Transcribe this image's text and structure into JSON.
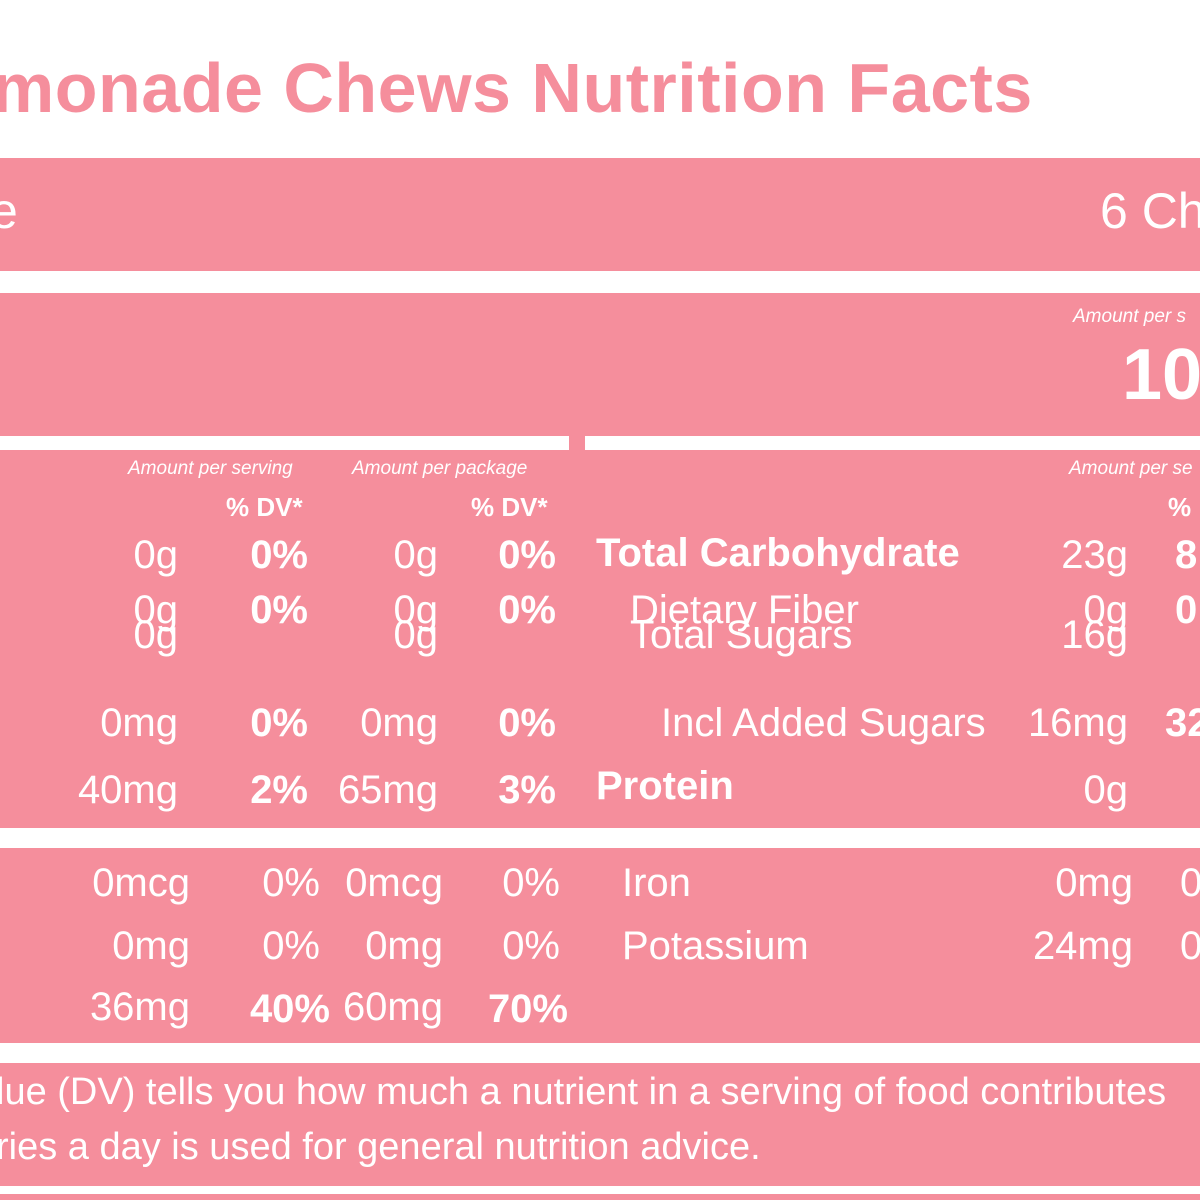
{
  "title": "monade Chews Nutrition Facts",
  "serving": {
    "label": "e",
    "value": "6 Ch"
  },
  "calories": {
    "amount_label": "Amount per s",
    "value": "10"
  },
  "macros": {
    "left": {
      "per_serving_label": "Amount per serving",
      "per_package_label": "Amount per package",
      "dv_label": "% DV*",
      "rows": [
        {
          "serv_amt": "0g",
          "serv_dv": "0%",
          "pkg_amt": "0g",
          "pkg_dv": "0%"
        },
        {
          "serv_amt": "0g",
          "serv_dv": "0%",
          "pkg_amt": "0g",
          "pkg_dv": "0%"
        },
        {
          "serv_amt": "0g",
          "serv_dv": "",
          "pkg_amt": "0g",
          "pkg_dv": ""
        },
        {
          "serv_amt": "0mg",
          "serv_dv": "0%",
          "pkg_amt": "0mg",
          "pkg_dv": "0%"
        },
        {
          "serv_amt": "40mg",
          "serv_dv": "2%",
          "pkg_amt": "65mg",
          "pkg_dv": "3%"
        }
      ]
    },
    "right": {
      "per_serving_label": "Amount per se",
      "dv_label": "%",
      "rows": [
        {
          "name": "Total Carbohydrate",
          "amt": "23g",
          "dv": "8"
        },
        {
          "name": "Dietary Fiber",
          "amt": "0g",
          "dv": "0"
        },
        {
          "name": "Total Sugars",
          "amt": "16g",
          "dv": ""
        },
        {
          "name": "Incl Added Sugars",
          "amt": "16mg",
          "dv": "32"
        },
        {
          "name": "Protein",
          "amt": "0g",
          "dv": ""
        }
      ]
    }
  },
  "micros": {
    "left": [
      {
        "serv_amt": "0mcg",
        "serv_dv": "0%",
        "pkg_amt": "0mcg",
        "pkg_dv": "0%"
      },
      {
        "serv_amt": "0mg",
        "serv_dv": "0%",
        "pkg_amt": "0mg",
        "pkg_dv": "0%"
      },
      {
        "serv_amt": "36mg",
        "serv_dv": "40%",
        "pkg_amt": "60mg",
        "pkg_dv": "70%"
      }
    ],
    "right": [
      {
        "name": "Iron",
        "amt": "0mg",
        "dv": "0"
      },
      {
        "name": "Potassium",
        "amt": "24mg",
        "dv": "0"
      }
    ]
  },
  "footnote": {
    "line1": "lue (DV) tells you how much a nutrient in a serving of food contributes",
    "line2": "ries a day is used for general nutrition advice."
  },
  "colors": {
    "background": "#F58E9C",
    "band": "#FFFFFF",
    "text": "#FFFFFF"
  }
}
